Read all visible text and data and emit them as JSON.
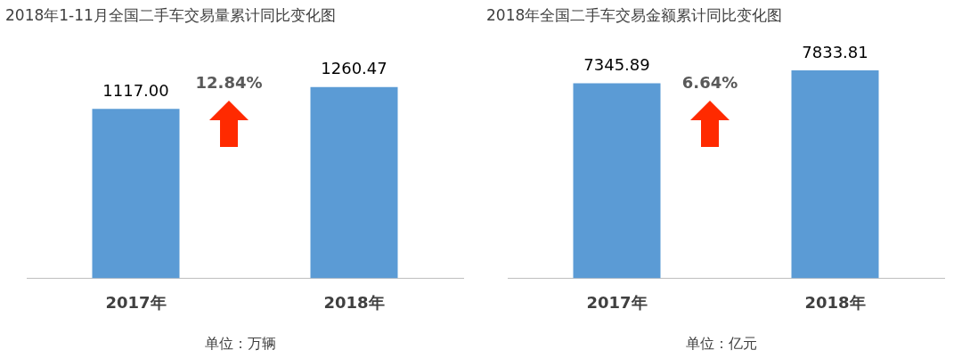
{
  "chart_data": [
    {
      "type": "bar",
      "title": "2018年1-11月全国二手车交易量累计同比变化图",
      "categories": [
        "2017年",
        "2018年"
      ],
      "values": [
        1117.0,
        1260.47
      ],
      "value_labels": [
        "1117.00",
        "1260.47"
      ],
      "color": "#5b9bd5",
      "tick_labels": "x",
      "grid": false,
      "legend": false,
      "annotations": [
        "12.84%",
        "单位：万辆"
      ]
    },
    {
      "type": "bar",
      "title": "2018年全国二手车交易金额累计同比变化图",
      "categories": [
        "2017年",
        "2018年"
      ],
      "values": [
        7345.89,
        7833.81
      ],
      "value_labels": [
        "7345.89",
        "7833.81"
      ],
      "color": "#5b9bd5",
      "tick_labels": "x",
      "grid": false,
      "legend": false,
      "annotations": [
        "6.64%",
        "单位：亿元"
      ]
    }
  ]
}
